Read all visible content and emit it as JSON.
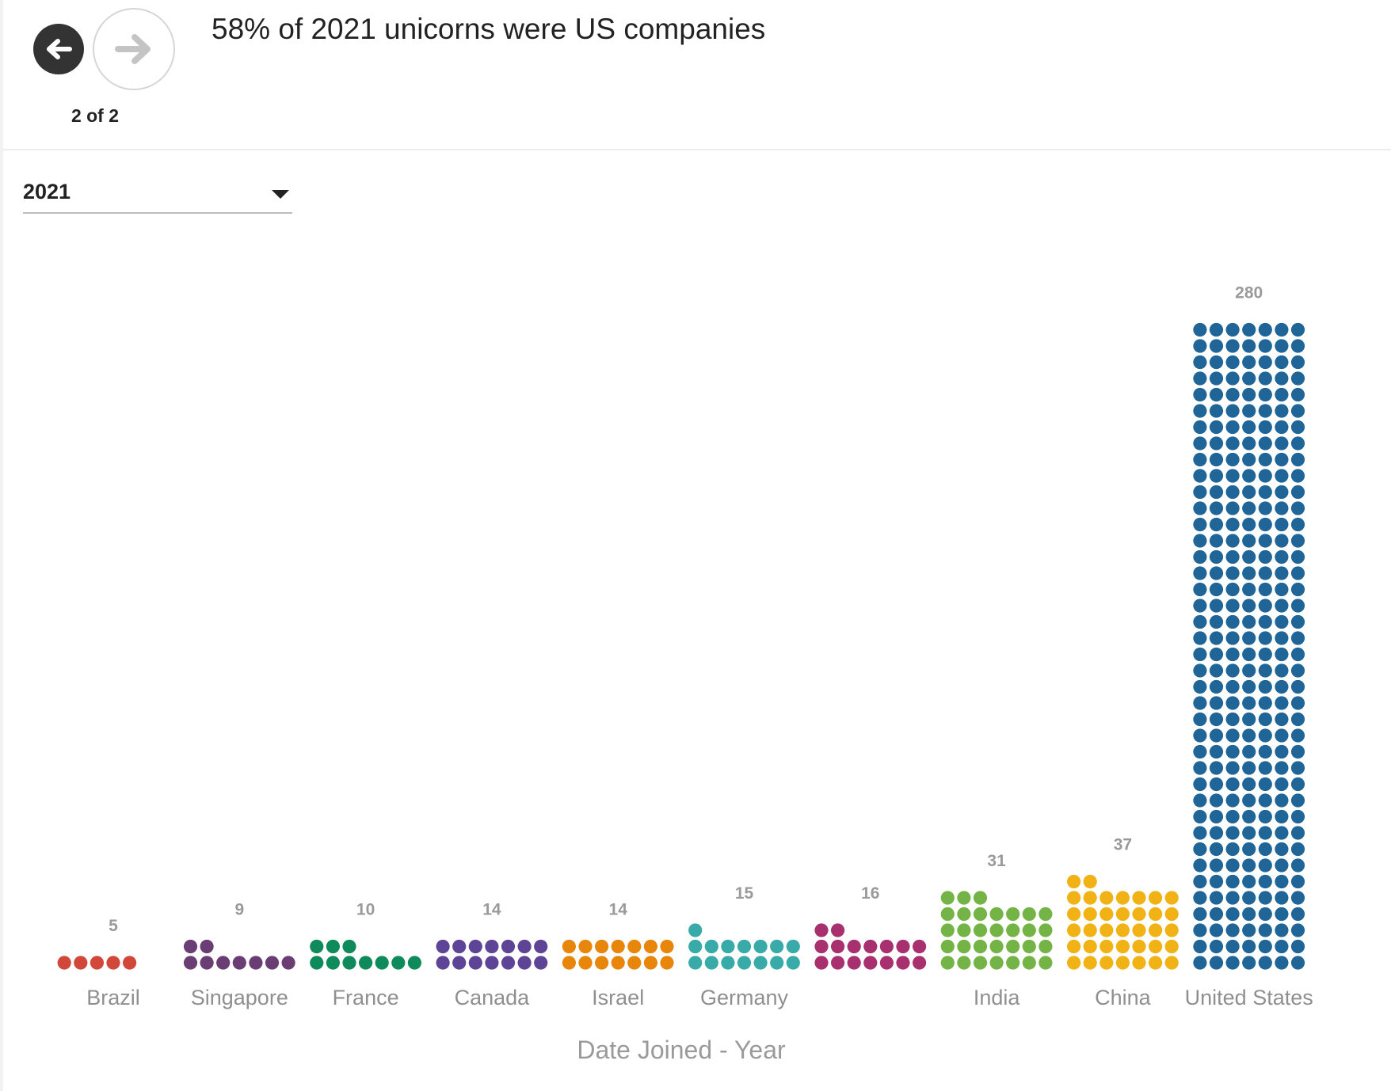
{
  "header": {
    "title": "58% of 2021 unicorns were US companies",
    "page_counter": "2 of 2",
    "prev_icon": "arrow-left-icon",
    "next_icon": "arrow-right-icon"
  },
  "filter": {
    "selected_year": "2021"
  },
  "chart_data": {
    "type": "unit-dot",
    "title": "58% of 2021 unicorns were US companies",
    "xlabel": "Date Joined - Year",
    "ylabel": "",
    "dots_per_row": 7,
    "categories": [
      "Brazil",
      "Singapore",
      "France",
      "Canada",
      "Israel",
      "Germany",
      "",
      "India",
      "China",
      "United States"
    ],
    "values": [
      5,
      9,
      10,
      14,
      14,
      15,
      16,
      31,
      37,
      280
    ],
    "colors": [
      "#d1473a",
      "#6b3d75",
      "#0f8a5a",
      "#5e4496",
      "#e8860c",
      "#38aaa8",
      "#a8306f",
      "#74b447",
      "#f0b215",
      "#1f6597"
    ]
  }
}
